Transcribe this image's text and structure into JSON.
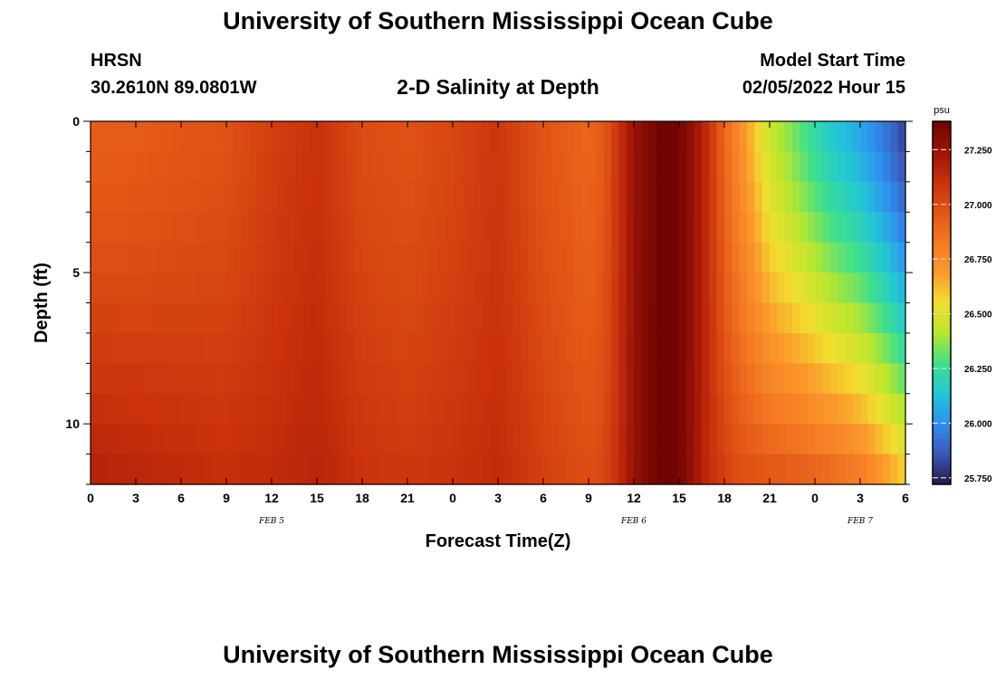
{
  "header": {
    "title": "University of Southern Mississippi Ocean Cube",
    "station": "HRSN",
    "coordinates": "30.2610N  89.0801W",
    "subtitle": "2-D Salinity at Depth",
    "model_start_label": "Model Start Time",
    "model_start_value": "02/05/2022 Hour 15"
  },
  "footer": {
    "title": "University of Southern Mississippi Ocean Cube"
  },
  "chart_data": {
    "type": "heatmap",
    "title": "2-D Salinity at Depth",
    "xlabel": "Forecast Time(Z)",
    "ylabel": "Depth (ft)",
    "x_tick_labels": [
      "0",
      "3",
      "6",
      "9",
      "12",
      "15",
      "18",
      "21",
      "0",
      "3",
      "6",
      "9",
      "12",
      "15",
      "18",
      "21",
      "0",
      "3",
      "6"
    ],
    "x_date_labels": [
      {
        "label": "FEB 5",
        "at_hours": 12
      },
      {
        "label": "FEB 6",
        "at_hours": 36
      },
      {
        "label": "FEB 7",
        "at_hours": 51
      }
    ],
    "x_range_hours": [
      0,
      54
    ],
    "y_tick_labels": [
      "0",
      "5",
      "10"
    ],
    "y_range_ft": [
      0,
      12
    ],
    "y_inverted": true,
    "colorbar": {
      "unit": "psu",
      "range": [
        25.72,
        27.38
      ],
      "tick_labels": [
        "27.250",
        "27.000",
        "26.750",
        "26.500",
        "26.250",
        "26.000",
        "25.750"
      ],
      "tick_values": [
        27.25,
        27.0,
        26.75,
        26.5,
        26.25,
        26.0,
        25.75
      ],
      "colors": [
        "#241a4a",
        "#3a58b8",
        "#2f8ff0",
        "#22c7d6",
        "#3fe08a",
        "#b8e62e",
        "#f2df2e",
        "#fb9a2c",
        "#f47a24",
        "#e25516",
        "#c9300c",
        "#9c1406",
        "#6e0404"
      ]
    },
    "profile_hours": [
      0,
      3,
      6,
      9,
      12,
      15,
      18,
      21,
      24,
      27,
      30,
      33,
      34,
      35,
      36,
      37,
      38,
      38.5,
      39,
      40,
      41,
      42,
      43,
      45,
      47,
      49,
      51,
      52,
      53,
      54
    ],
    "salinity_surface": [
      26.93,
      26.94,
      26.96,
      26.98,
      27.05,
      27.1,
      27.0,
      26.98,
      27.02,
      27.08,
      26.97,
      26.9,
      26.95,
      27.1,
      27.25,
      27.33,
      27.38,
      27.39,
      27.36,
      27.25,
      27.1,
      26.9,
      26.75,
      26.45,
      26.3,
      26.15,
      26.05,
      25.98,
      25.9,
      25.8
    ],
    "salinity_bottom": [
      27.18,
      27.16,
      27.14,
      27.12,
      27.13,
      27.16,
      27.1,
      27.08,
      27.1,
      27.13,
      27.05,
      27.0,
      27.02,
      27.12,
      27.26,
      27.34,
      27.38,
      27.39,
      27.36,
      27.24,
      27.12,
      27.05,
      27.0,
      26.98,
      26.96,
      26.92,
      26.85,
      26.78,
      26.7,
      26.62
    ]
  }
}
